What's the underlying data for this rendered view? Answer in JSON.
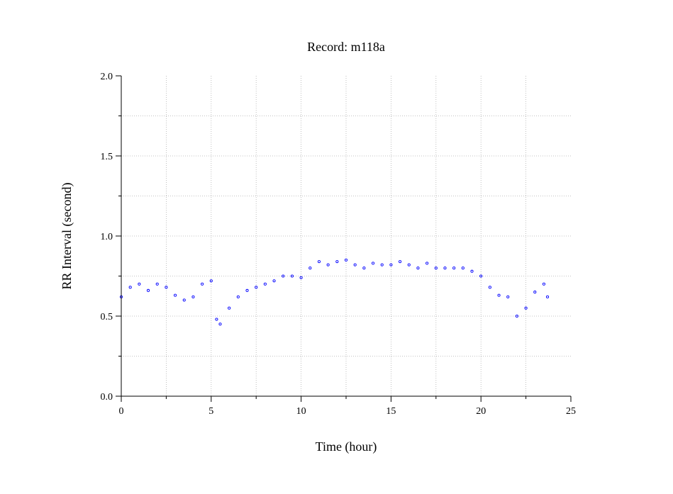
{
  "chart_data": {
    "type": "scatter",
    "title": "Record:  m118a",
    "xlabel": "Time (hour)",
    "ylabel": "RR Interval (second)",
    "xlim": [
      0,
      25
    ],
    "ylim": [
      0.0,
      2.0
    ],
    "x_ticks": [
      "0",
      "5",
      "10",
      "15",
      "20",
      "25"
    ],
    "y_ticks": [
      "0.0",
      "0.5",
      "1.0",
      "1.5",
      "2.0"
    ],
    "grid": true,
    "marker_color": "#0000ff",
    "series": [
      {
        "x": [
          0.0,
          0.5,
          1.0,
          1.5,
          2.0,
          2.5,
          3.0,
          3.5,
          4.0,
          4.5,
          5.0,
          5.3,
          5.5,
          6.0,
          6.5,
          7.0,
          7.5,
          8.0,
          8.5,
          9.0,
          9.5,
          10.0,
          10.5,
          11.0,
          11.5,
          12.0,
          12.5,
          13.0,
          13.5,
          14.0,
          14.5,
          15.0,
          15.5,
          16.0,
          16.5,
          17.0,
          17.5,
          18.0,
          18.5,
          19.0,
          19.5,
          20.0,
          20.5,
          21.0,
          21.5,
          22.0,
          22.5,
          23.0,
          23.5,
          23.7
        ],
        "y": [
          0.62,
          0.68,
          0.7,
          0.66,
          0.7,
          0.68,
          0.63,
          0.6,
          0.62,
          0.7,
          0.72,
          0.48,
          0.45,
          0.55,
          0.62,
          0.66,
          0.68,
          0.7,
          0.72,
          0.75,
          0.75,
          0.74,
          0.8,
          0.84,
          0.82,
          0.84,
          0.85,
          0.82,
          0.8,
          0.83,
          0.82,
          0.82,
          0.84,
          0.82,
          0.8,
          0.83,
          0.8,
          0.8,
          0.8,
          0.8,
          0.78,
          0.75,
          0.68,
          0.63,
          0.62,
          0.5,
          0.55,
          0.65,
          0.7,
          0.62
        ]
      }
    ]
  }
}
